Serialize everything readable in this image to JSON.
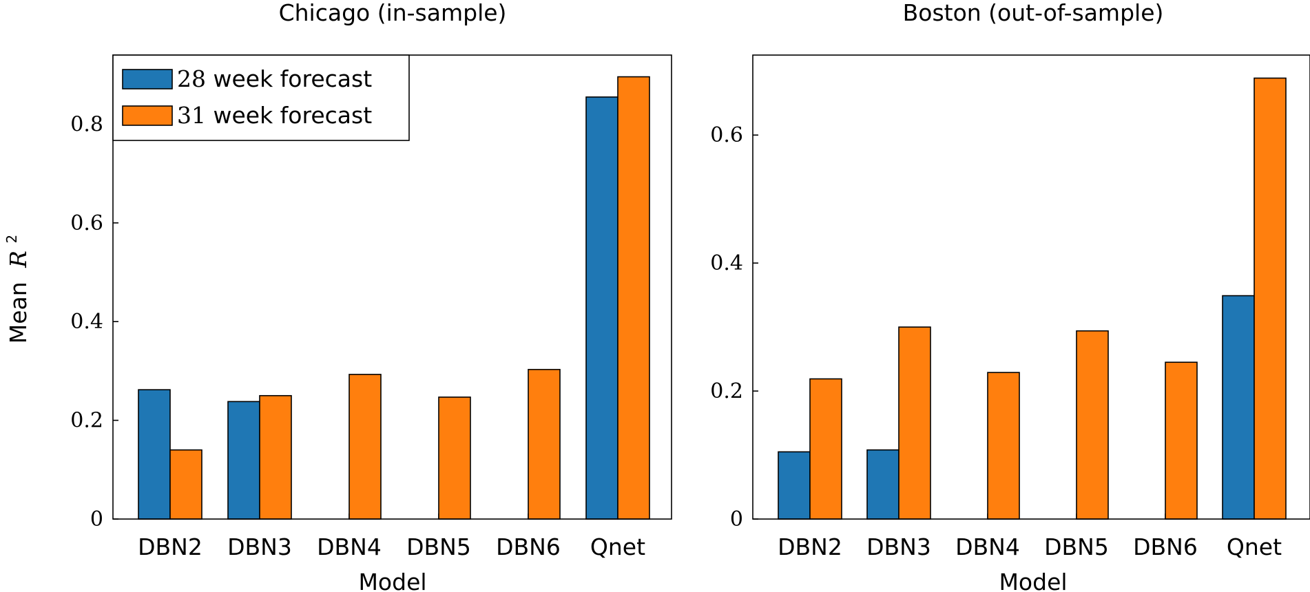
{
  "colors": {
    "series_28": "#1f77b4",
    "series_31": "#ff7f0e"
  },
  "chart_data": [
    {
      "type": "bar",
      "title": "Chicago (in-sample)",
      "xlabel": "Model",
      "ylabel": "Mean R²",
      "ylabel_prefix": "Mean",
      "ylabel_var": "R",
      "ylabel_sup": "2",
      "ylim": [
        0,
        0.94
      ],
      "yticks": [
        0,
        0.2,
        0.4,
        0.6,
        0.8
      ],
      "ytick_labels": [
        "0",
        "0.2",
        "0.4",
        "0.6",
        "0.8"
      ],
      "categories": [
        "DBN2",
        "DBN3",
        "DBN4",
        "DBN5",
        "DBN6",
        "Qnet"
      ],
      "legend": {
        "placement": "top-left",
        "entries": [
          {
            "num": "28",
            "text": " week forecast"
          },
          {
            "num": "31",
            "text": " week forecast"
          }
        ]
      },
      "series": [
        {
          "name": "28 week forecast",
          "color_key": "series_28",
          "values": [
            0.262,
            0.238,
            0.0,
            0.0,
            0.0,
            0.855
          ]
        },
        {
          "name": "31 week forecast",
          "color_key": "series_31",
          "values": [
            0.14,
            0.25,
            0.293,
            0.247,
            0.303,
            0.896
          ]
        }
      ]
    },
    {
      "type": "bar",
      "title": "Boston (out-of-sample)",
      "xlabel": "Model",
      "ylim": [
        0,
        0.725
      ],
      "yticks": [
        0,
        0.2,
        0.4,
        0.6
      ],
      "ytick_labels": [
        "0",
        "0.2",
        "0.4",
        "0.6"
      ],
      "categories": [
        "DBN2",
        "DBN3",
        "DBN4",
        "DBN5",
        "DBN6",
        "Qnet"
      ],
      "series": [
        {
          "name": "28 week forecast",
          "color_key": "series_28",
          "values": [
            0.105,
            0.108,
            0.0,
            0.0,
            0.0,
            0.349
          ]
        },
        {
          "name": "31 week forecast",
          "color_key": "series_31",
          "values": [
            0.219,
            0.3,
            0.229,
            0.294,
            0.245,
            0.689
          ]
        }
      ]
    }
  ]
}
